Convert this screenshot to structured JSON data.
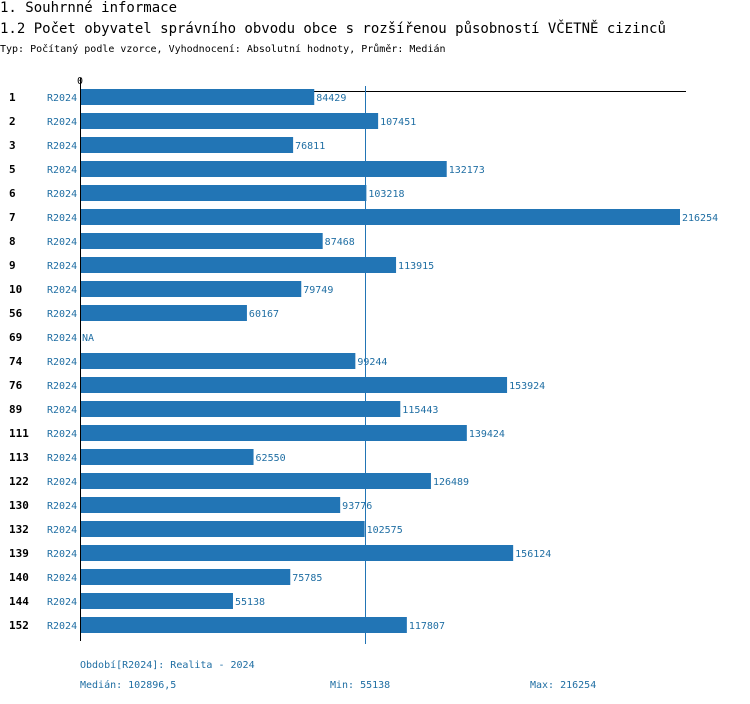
{
  "header": {
    "section_title": "1. Souhrnné informace",
    "chart_title": "1.2 Počet obyvatel správního obvodu obce s rozšířenou působností VČETNĚ cizinců",
    "type_line": "Typ: Počítaný podle vzorce, Vyhodnocení: Absolutní hodnoty, Průměr: Medián"
  },
  "colors": {
    "bar": "#2275b5",
    "label_blue": "#1f6ea3",
    "axis": "#000000",
    "median_line": "#2275b5"
  },
  "chart_data": {
    "type": "bar",
    "orientation": "horizontal",
    "title": "1.2 Počet obyvatel správního obvodu obce s rozšířenou působností VČETNĚ cizinců",
    "axis_zero_label": "0",
    "xlim": [
      0,
      216254
    ],
    "categories": [
      "1",
      "2",
      "3",
      "5",
      "6",
      "7",
      "8",
      "9",
      "10",
      "56",
      "69",
      "74",
      "76",
      "89",
      "111",
      "113",
      "122",
      "130",
      "132",
      "139",
      "140",
      "144",
      "152"
    ],
    "period_labels": [
      "R2024",
      "R2024",
      "R2024",
      "R2024",
      "R2024",
      "R2024",
      "R2024",
      "R2024",
      "R2024",
      "R2024",
      "R2024",
      "R2024",
      "R2024",
      "R2024",
      "R2024",
      "R2024",
      "R2024",
      "R2024",
      "R2024",
      "R2024",
      "R2024",
      "R2024",
      "R2024"
    ],
    "values": [
      84429,
      107451,
      76811,
      132173,
      103218,
      216254,
      87468,
      113915,
      79749,
      60167,
      null,
      99244,
      153924,
      115443,
      139424,
      62550,
      126489,
      93776,
      102575,
      156124,
      75785,
      55138,
      117807
    ],
    "value_labels": [
      "84429",
      "107451",
      "76811",
      "132173",
      "103218",
      "216254",
      "87468",
      "113915",
      "79749",
      "60167",
      "NA",
      "99244",
      "153924",
      "115443",
      "139424",
      "62550",
      "126489",
      "93776",
      "102575",
      "156124",
      "75785",
      "55138",
      "117807"
    ],
    "median": 102896.5
  },
  "footer": {
    "period": "Období[R2024]: Realita - 2024",
    "median": "Medián: 102896,5",
    "min": "Min: 55138",
    "max": "Max: 216254"
  }
}
